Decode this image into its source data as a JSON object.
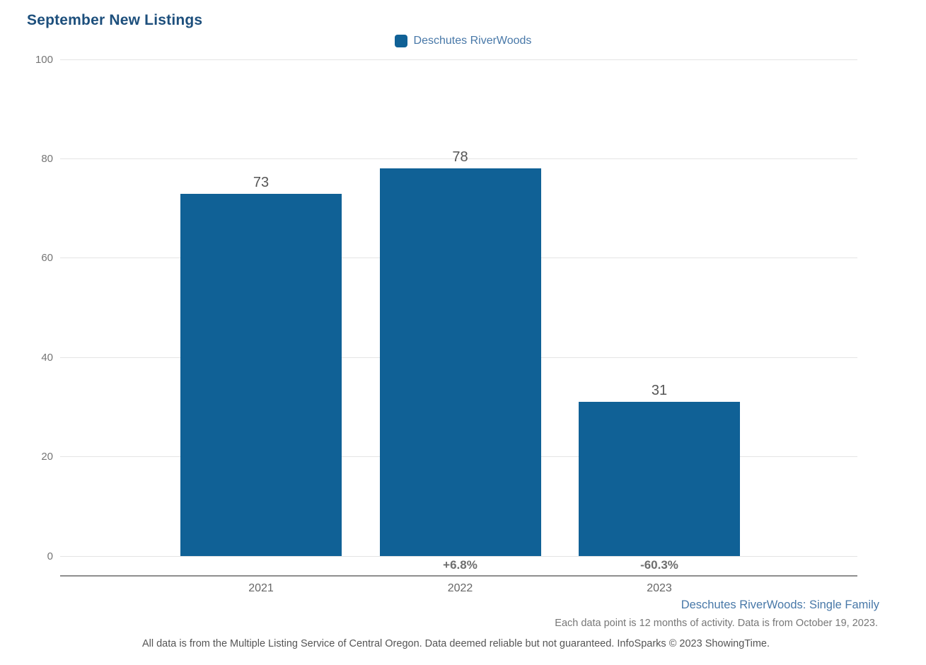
{
  "title": {
    "text": "September New Listings",
    "color": "#1d4f7c"
  },
  "legend": {
    "items": [
      {
        "label": "Deschutes RiverWoods",
        "color": "#106196"
      }
    ]
  },
  "chart_data": {
    "type": "bar",
    "categories": [
      "2021",
      "2022",
      "2023"
    ],
    "values": [
      73,
      78,
      31
    ],
    "bar_value_labels": [
      "73",
      "78",
      "31"
    ],
    "pct_change_labels": [
      "",
      "+6.8%",
      "-60.3%"
    ],
    "series": [
      {
        "name": "Deschutes RiverWoods",
        "values": [
          73,
          78,
          31
        ],
        "color": "#106196"
      }
    ],
    "title": "September New Listings",
    "xlabel": "",
    "ylabel": "",
    "ylim": [
      0,
      100
    ],
    "yticks": [
      0,
      20,
      40,
      60,
      80,
      100
    ],
    "grid": true,
    "legend_position": "top-center"
  },
  "footnotes": {
    "series_detail": "Deschutes RiverWoods: Single Family",
    "data_note": "Each data point is 12 months of activity. Data is from October 19, 2023.",
    "disclaimer": "All data is from the Multiple Listing Service of Central Oregon. Data deemed reliable but not guaranteed. InfoSparks © 2023 ShowingTime."
  }
}
